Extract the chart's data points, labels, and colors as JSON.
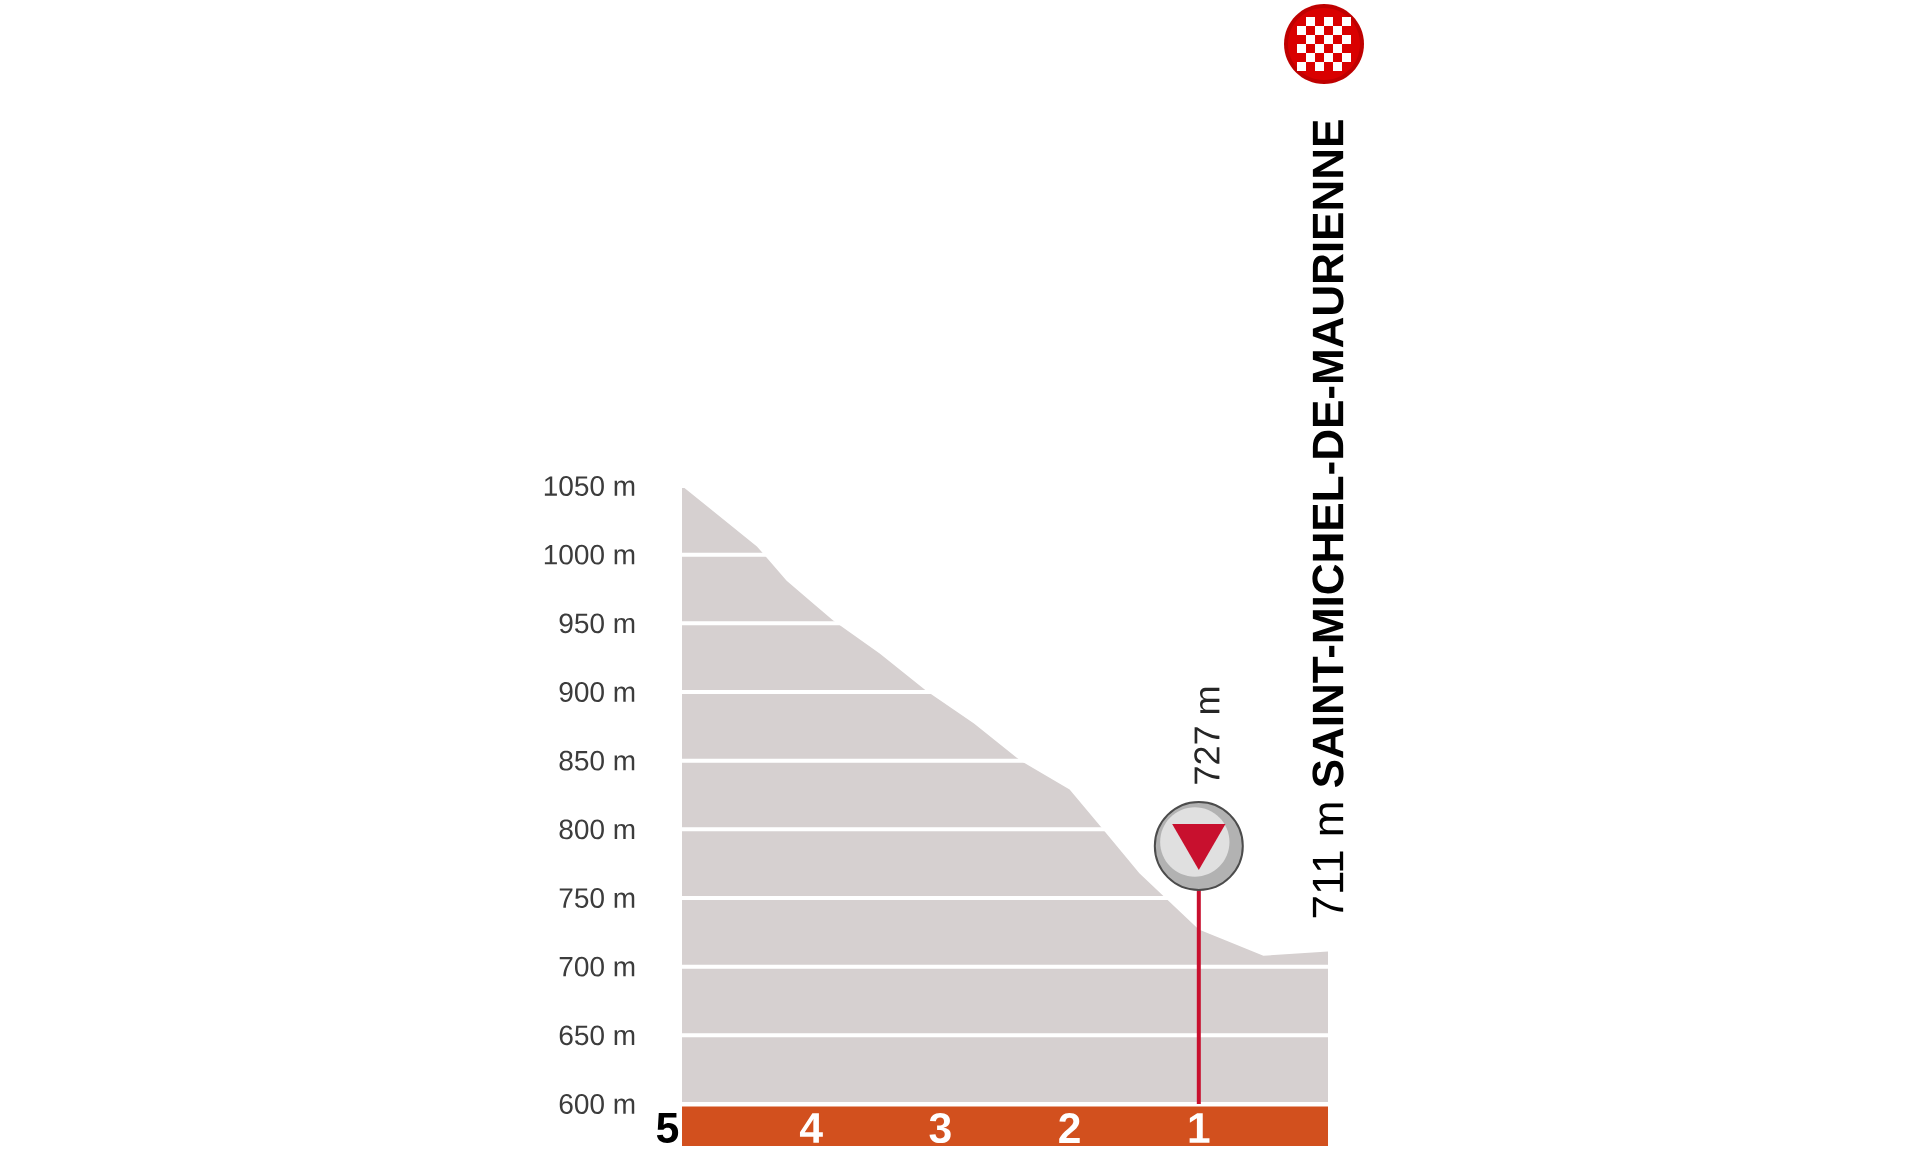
{
  "chart_data": {
    "type": "area",
    "x": [
      5,
      4.42,
      4.19,
      3.98,
      3.83,
      3.47,
      3.11,
      2.74,
      2.38,
      2,
      1.76,
      1.46,
      1.27,
      1,
      0.79,
      0.5,
      0
    ],
    "series": [
      {
        "color": "#d6d0d0",
        "values": [
          1050,
          1006,
          981,
          964,
          952,
          928,
          901,
          877,
          850,
          829,
          802,
          768,
          751,
          727,
          719,
          708,
          711
        ]
      }
    ],
    "xlim": [
      5,
      0
    ],
    "xticks": [
      5,
      4,
      3,
      2,
      1
    ],
    "ylim": [
      600,
      1050
    ],
    "yticks": [
      {
        "value": 600,
        "label": "600 m"
      },
      {
        "value": 650,
        "label": "650 m"
      },
      {
        "value": 700,
        "label": "700 m"
      },
      {
        "value": 750,
        "label": "750 m"
      },
      {
        "value": 800,
        "label": "800 m"
      },
      {
        "value": 850,
        "label": "850 m"
      },
      {
        "value": 900,
        "label": "900 m"
      },
      {
        "value": 950,
        "label": "950 m"
      },
      {
        "value": 1000,
        "label": "1000 m"
      },
      {
        "value": 1050,
        "label": "1050 m"
      }
    ],
    "grid": "y",
    "ref_lines": [
      {
        "axis": "x",
        "value": 1,
        "label": "727 m",
        "color": "#c8102e"
      }
    ],
    "annotations": [
      {
        "text": "711 m **SAINT-MICHEL-DE-MAURIENNE**",
        "x": 0,
        "y": 711
      }
    ]
  }
}
